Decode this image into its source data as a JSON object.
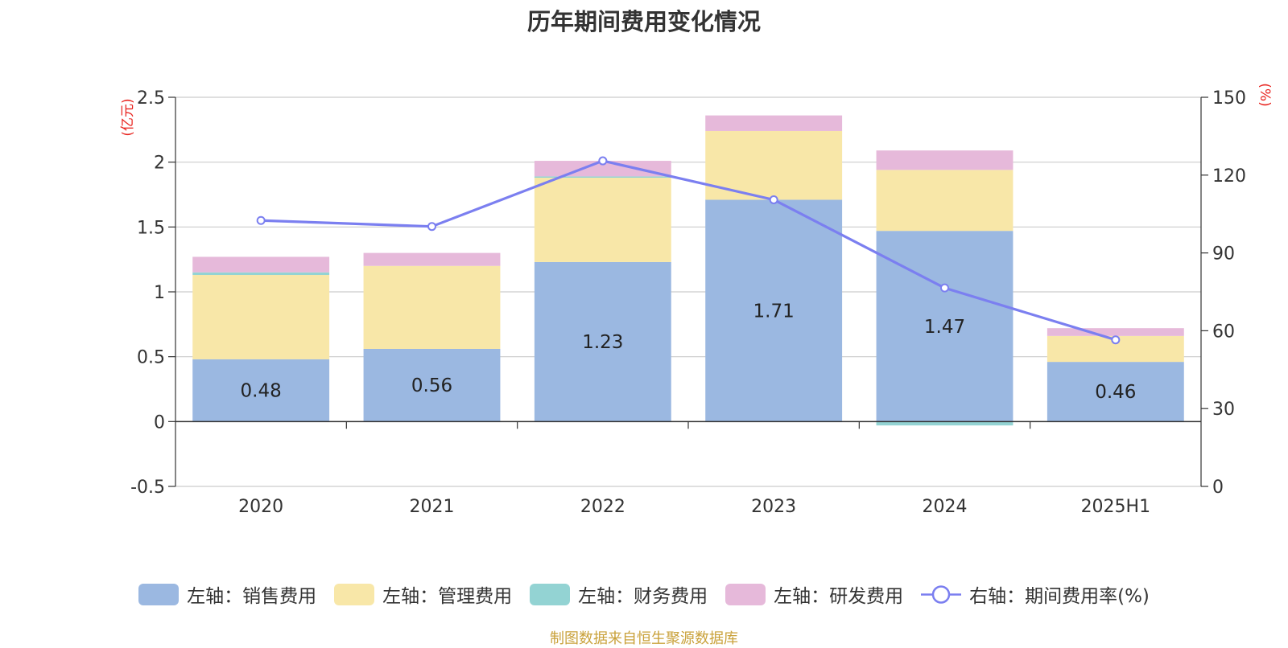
{
  "title": "历年期间费用变化情况",
  "source": "制图数据来自恒生聚源数据库",
  "legend": {
    "sales": "左轴：销售费用",
    "admin": "左轴：管理费用",
    "finance": "左轴：财务费用",
    "rnd": "左轴：研发费用",
    "rate": "右轴：期间费用率(%)"
  },
  "chart_data": {
    "type": "bar",
    "stacked": true,
    "categories": [
      "2020",
      "2021",
      "2022",
      "2023",
      "2024",
      "2025H1"
    ],
    "series": [
      {
        "name": "左轴：销售费用",
        "axis": "left",
        "values": [
          0.48,
          0.56,
          1.23,
          1.71,
          1.47,
          0.46
        ],
        "color": "#9bb8e1",
        "labels": [
          "0.48",
          "0.56",
          "1.23",
          "1.71",
          "1.47",
          "0.46"
        ]
      },
      {
        "name": "左轴：管理费用",
        "axis": "left",
        "values": [
          0.65,
          0.64,
          0.65,
          0.53,
          0.47,
          0.2
        ],
        "color": "#f8e7a8"
      },
      {
        "name": "左轴：财务费用",
        "axis": "left",
        "values": [
          0.02,
          0.0,
          0.01,
          0.0,
          -0.03,
          0.0
        ],
        "color": "#93d3d3"
      },
      {
        "name": "左轴：研发费用",
        "axis": "left",
        "values": [
          0.12,
          0.1,
          0.12,
          0.12,
          0.15,
          0.06
        ],
        "color": "#e6b9da"
      },
      {
        "name": "右轴：期间费用率(%)",
        "axis": "right",
        "type": "line",
        "values": [
          102.5,
          100.2,
          125.5,
          110.5,
          76.5,
          56.5
        ],
        "color": "#7b7ff0"
      }
    ],
    "left_axis": {
      "unit": "(亿元)",
      "ylim": [
        -0.5,
        2.5
      ],
      "ticks": [
        "-0.5",
        "0",
        "0.5",
        "1",
        "1.5",
        "2",
        "2.5"
      ],
      "tick_values": [
        -0.5,
        0,
        0.5,
        1,
        1.5,
        2,
        2.5
      ]
    },
    "right_axis": {
      "unit": "(%)",
      "ylim": [
        0,
        150
      ],
      "ticks": [
        "0",
        "30",
        "60",
        "90",
        "120",
        "150"
      ],
      "tick_values": [
        0,
        30,
        60,
        90,
        120,
        150
      ]
    },
    "grid": true,
    "legend_position": "bottom"
  }
}
